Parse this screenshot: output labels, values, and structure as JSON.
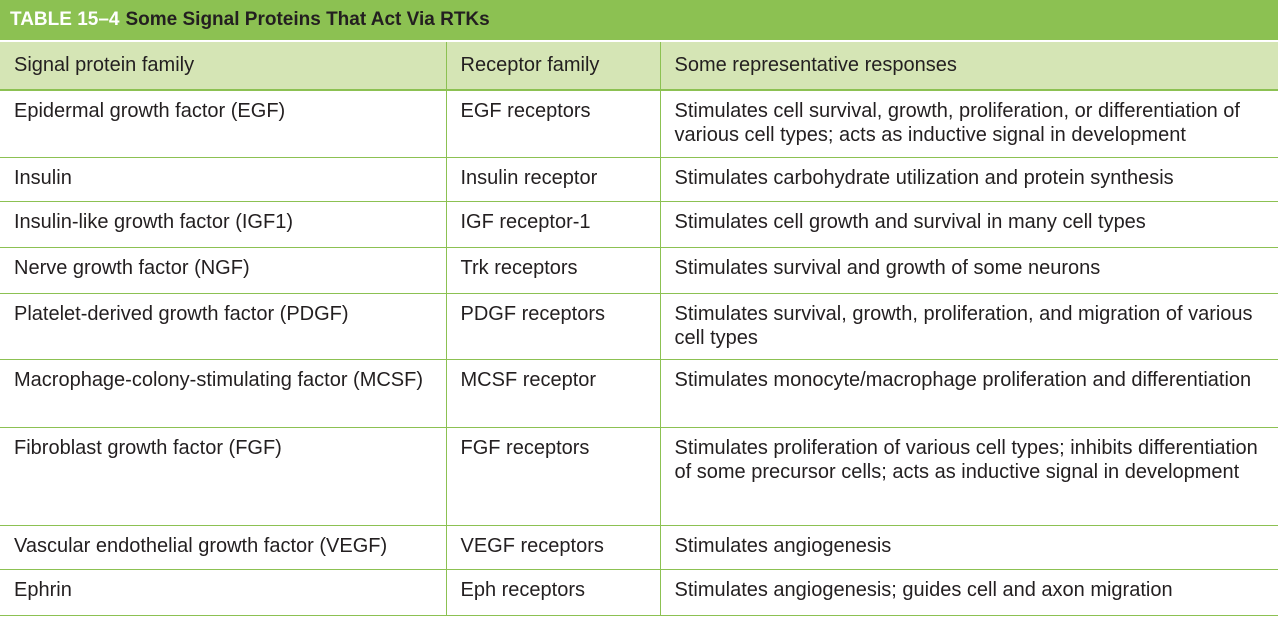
{
  "table": {
    "label": "TABLE 15–4",
    "title": "Some Signal Proteins That Act Via RTKs",
    "headers": [
      "Signal protein family",
      "Receptor family",
      "Some representative responses"
    ],
    "rows": [
      [
        "Epidermal growth factor (EGF)",
        "EGF receptors",
        "Stimulates cell survival, growth, proliferation, or differentiation of various cell types; acts as inductive signal in development"
      ],
      [
        "Insulin",
        "Insulin receptor",
        "Stimulates carbohydrate utilization and protein synthesis"
      ],
      [
        "Insulin-like growth factor (IGF1)",
        "IGF receptor-1",
        "Stimulates cell growth and survival in many cell types"
      ],
      [
        "Nerve growth factor (NGF)",
        "Trk receptors",
        "Stimulates survival and growth of some neurons"
      ],
      [
        "Platelet-derived growth factor (PDGF)",
        "PDGF receptors",
        "Stimulates survival, growth, proliferation, and migration of various cell types"
      ],
      [
        "Macrophage-colony-stimulating factor (MCSF)",
        "MCSF receptor",
        "Stimulates monocyte/macrophage proliferation and differentiation"
      ],
      [
        "Fibroblast growth factor (FGF)",
        "FGF receptors",
        "Stimulates proliferation of various cell types; inhibits differentiation of some precursor cells; acts as inductive signal in development"
      ],
      [
        "Vascular endothelial growth factor (VEGF)",
        "VEGF receptors",
        "Stimulates angiogenesis"
      ],
      [
        "Ephrin",
        "Eph receptors",
        "Stimulates angiogenesis; guides cell and axon migration"
      ]
    ]
  },
  "colors": {
    "title_bar": "#8cc152",
    "header_row": "#d5e5b5",
    "rule": "#8cc152",
    "label_text": "#ffffff",
    "body_text": "#231f20"
  }
}
